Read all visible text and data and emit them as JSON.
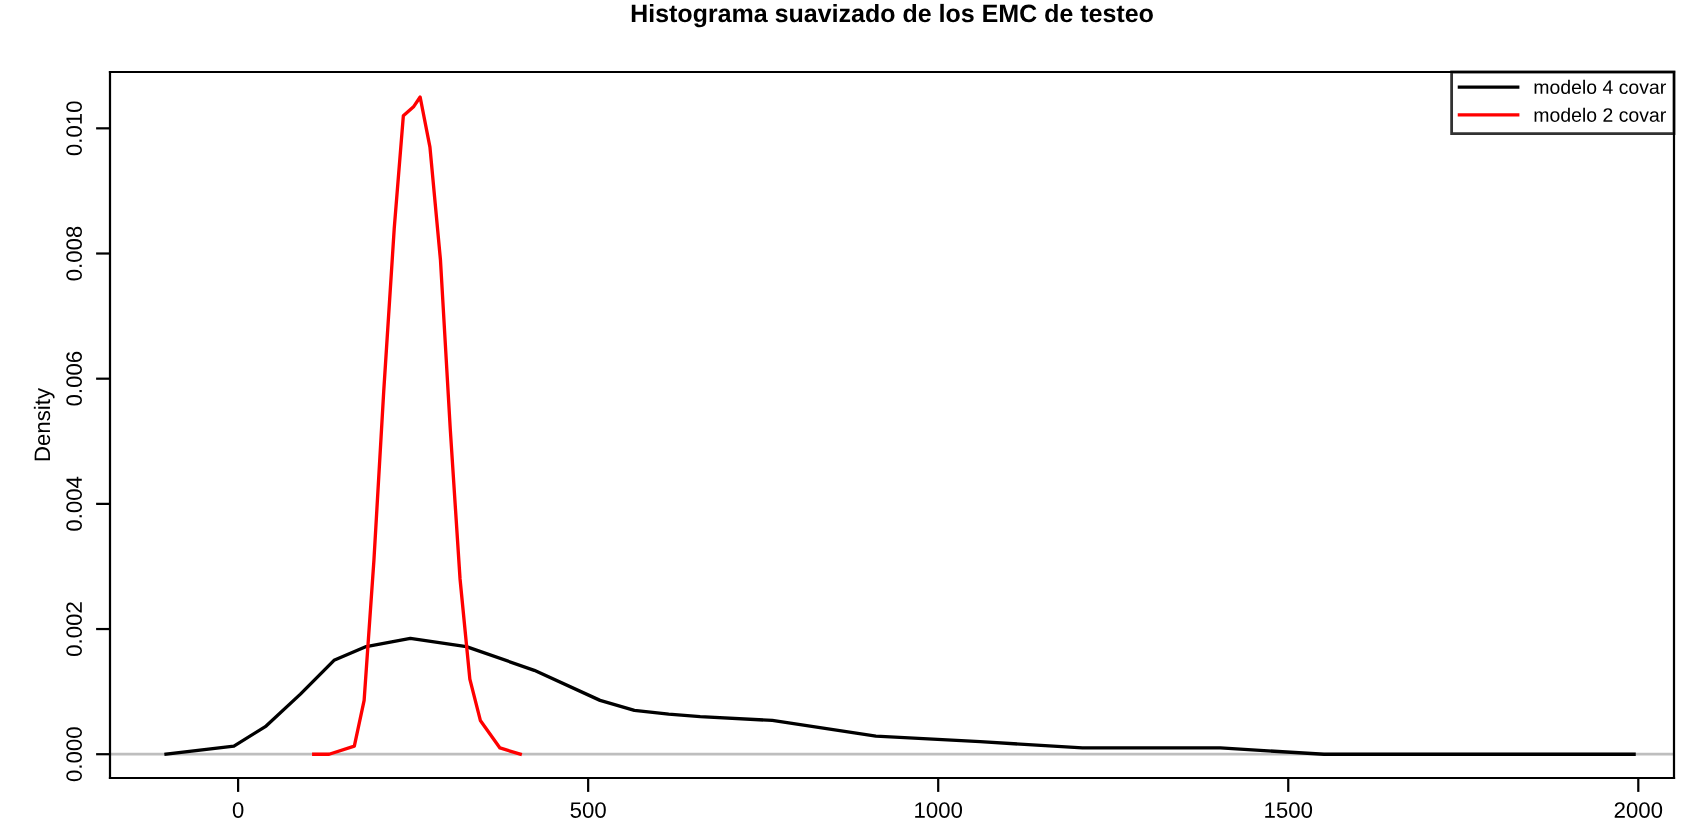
{
  "chart_data": {
    "type": "line",
    "title": "Histograma suavizado de los EMC de testeo",
    "ylabel": "Density",
    "xlim": [
      -183,
      2051
    ],
    "ylim": [
      -0.00038,
      0.0109
    ],
    "xticks": [
      0,
      500,
      1000,
      1500,
      2000
    ],
    "yticks": [
      {
        "value": 0,
        "label": "0.000"
      },
      {
        "value": 0.002,
        "label": "0.002"
      },
      {
        "value": 0.004,
        "label": "0.004"
      },
      {
        "value": 0.006,
        "label": "0.006"
      },
      {
        "value": 0.008,
        "label": "0.008"
      },
      {
        "value": 0.01,
        "label": "0.010"
      }
    ],
    "grid": false,
    "legend": "top right",
    "marker": "none",
    "line_style": "solid",
    "ref_lines": [
      {
        "axis": "y",
        "value": 0,
        "color": "#bebebe"
      }
    ],
    "series": [
      {
        "name": "modelo 4 covar",
        "color": "#000000",
        "x": [
          -103,
          -6,
          40,
          89,
          137,
          183,
          246,
          326,
          423,
          517,
          566,
          615,
          660,
          763,
          911,
          1060,
          1206,
          1403,
          1551,
          1994
        ],
        "values": [
          0,
          0.00013,
          0.00045,
          0.00096,
          0.0015,
          0.00172,
          0.00185,
          0.00172,
          0.00134,
          0.00086,
          0.0007,
          0.00064,
          0.0006,
          0.00054,
          0.00029,
          0.0002,
          0.0001,
          0.0001,
          0,
          0
        ]
      },
      {
        "name": "modelo 2 covar",
        "color": "#ff0000",
        "x": [
          108,
          130,
          166,
          180,
          194,
          208,
          223,
          236,
          251,
          260,
          274,
          289,
          303,
          317,
          331,
          346,
          374,
          403
        ],
        "values": [
          0,
          0,
          0.00013,
          0.00086,
          0.0031,
          0.0058,
          0.0084,
          0.0102,
          0.01035,
          0.0105,
          0.0097,
          0.0079,
          0.0052,
          0.0028,
          0.0012,
          0.00054,
          0.0001,
          0
        ]
      }
    ]
  }
}
